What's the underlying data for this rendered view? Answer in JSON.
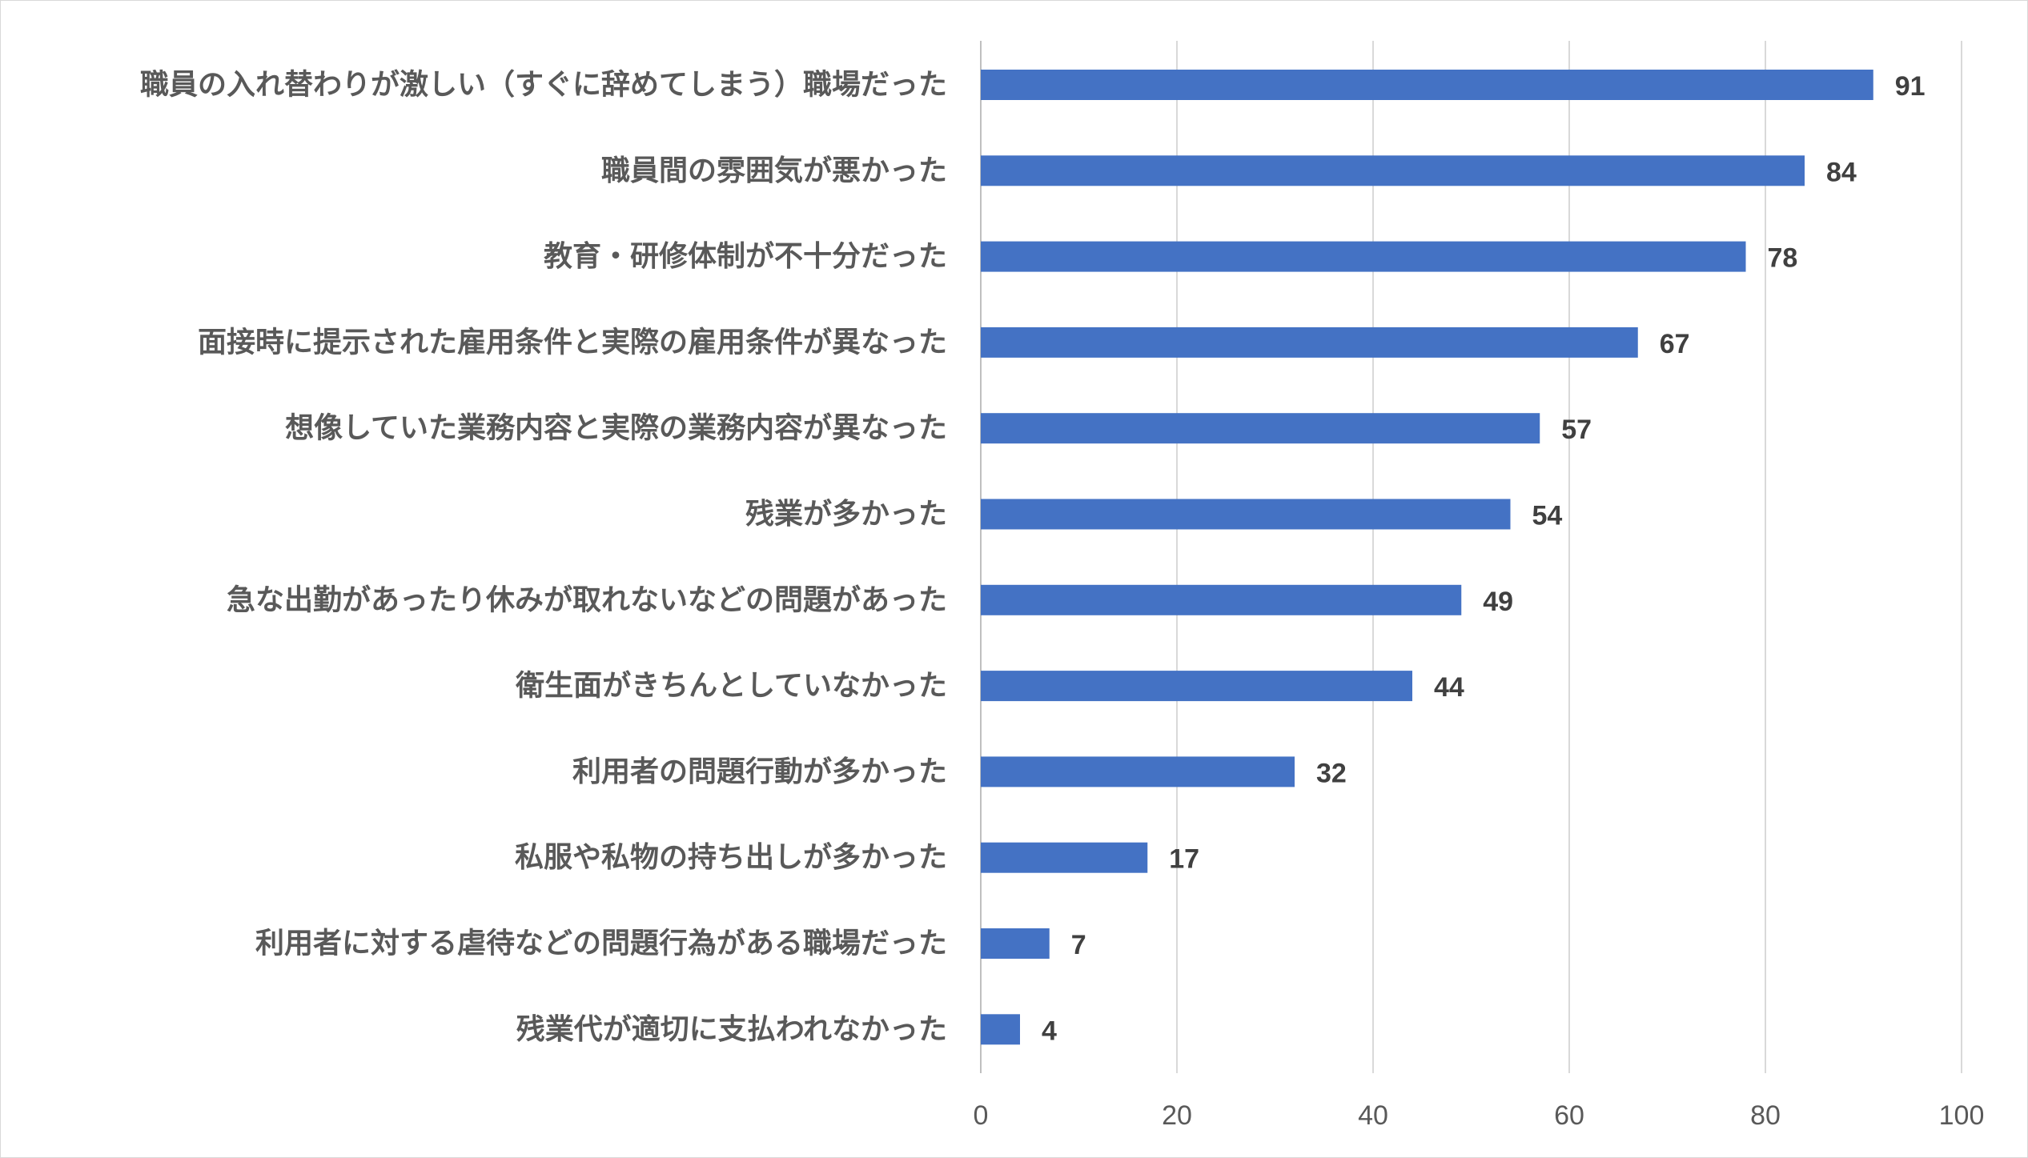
{
  "chart_data": {
    "type": "bar",
    "orientation": "horizontal",
    "title": "",
    "xlabel": "",
    "ylabel": "",
    "categories": [
      "職員の入れ替わりが激しい（すぐに辞めてしまう）職場だった",
      "職員間の雰囲気が悪かった",
      "教育・研修体制が不十分だった",
      "面接時に提示された雇用条件と実際の雇用条件が異なった",
      "想像していた業務内容と実際の業務内容が異なった",
      "残業が多かった",
      "急な出勤があったり休みが取れないなどの問題があった",
      "衛生面がきちんとしていなかった",
      "利用者の問題行動が多かった",
      "私服や私物の持ち出しが多かった",
      "利用者に対する虐待などの問題行為がある職場だった",
      "残業代が適切に支払われなかった"
    ],
    "values": [
      91,
      84,
      78,
      67,
      57,
      54,
      49,
      44,
      32,
      17,
      7,
      4
    ],
    "xlim": [
      0,
      100
    ],
    "xticks": [
      0,
      20,
      40,
      60,
      80,
      100
    ],
    "grid": true,
    "legend": "none",
    "bar_color": "#4472c4",
    "data_labels": true
  }
}
